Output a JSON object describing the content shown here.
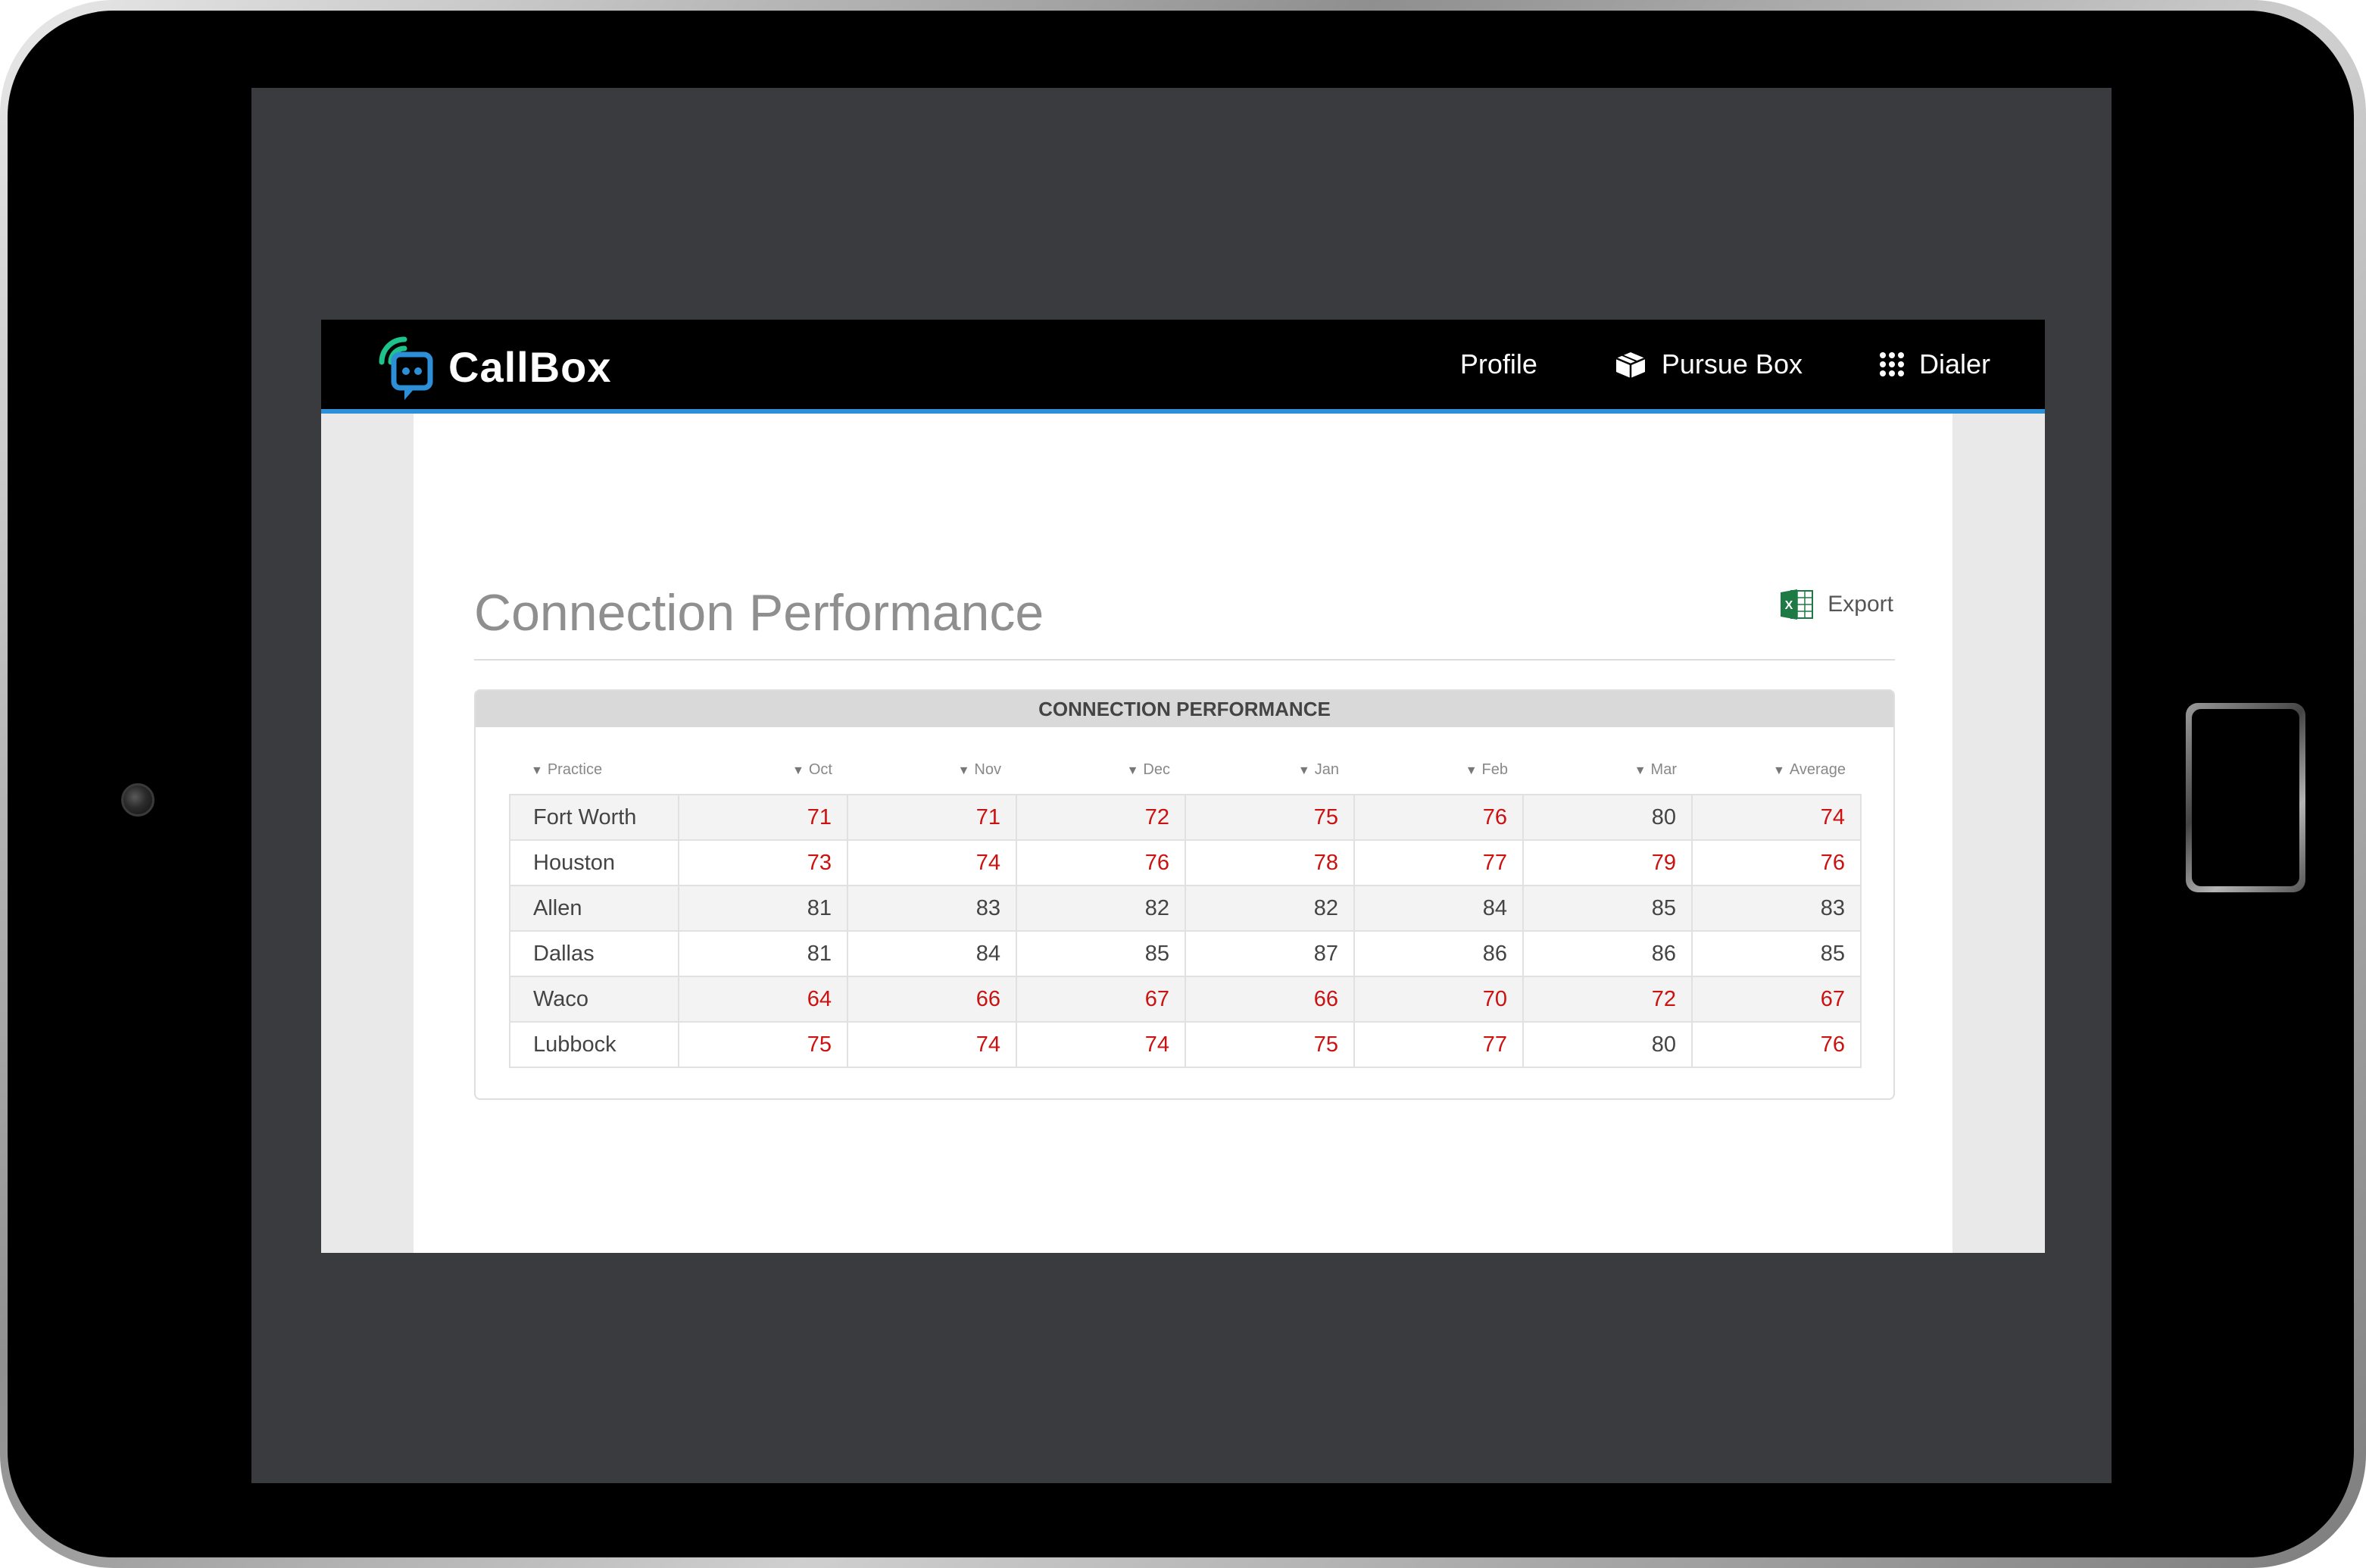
{
  "app": {
    "brand_name": "CallBox",
    "nav": [
      {
        "label": "Profile",
        "icon": "none"
      },
      {
        "label": "Pursue Box",
        "icon": "box-icon"
      },
      {
        "label": "Dialer",
        "icon": "grid-icon"
      }
    ],
    "accent_color": "#2d8fd8",
    "logo_colors": [
      "#1ec28b",
      "#2d8fd8"
    ]
  },
  "page": {
    "title": "Connection Performance",
    "export_label": "Export"
  },
  "table": {
    "panel_title": "CONNECTION PERFORMANCE",
    "columns": [
      "Practice",
      "Oct",
      "Nov",
      "Dec",
      "Jan",
      "Feb",
      "Mar",
      "Average"
    ],
    "rows": [
      {
        "practice": "Fort Worth",
        "values": [
          71,
          71,
          72,
          75,
          76,
          80,
          74
        ]
      },
      {
        "practice": "Houston",
        "values": [
          73,
          74,
          76,
          78,
          77,
          79,
          76
        ]
      },
      {
        "practice": "Allen",
        "values": [
          81,
          83,
          82,
          82,
          84,
          85,
          83
        ]
      },
      {
        "practice": "Dallas",
        "values": [
          81,
          84,
          85,
          87,
          86,
          86,
          85
        ]
      },
      {
        "practice": "Waco",
        "values": [
          64,
          66,
          67,
          66,
          70,
          72,
          67
        ]
      },
      {
        "practice": "Lubbock",
        "values": [
          75,
          74,
          74,
          75,
          77,
          80,
          76
        ]
      }
    ],
    "highlight_color": "#cc1111",
    "normal_color": "#444444",
    "highlight_below": 80
  }
}
